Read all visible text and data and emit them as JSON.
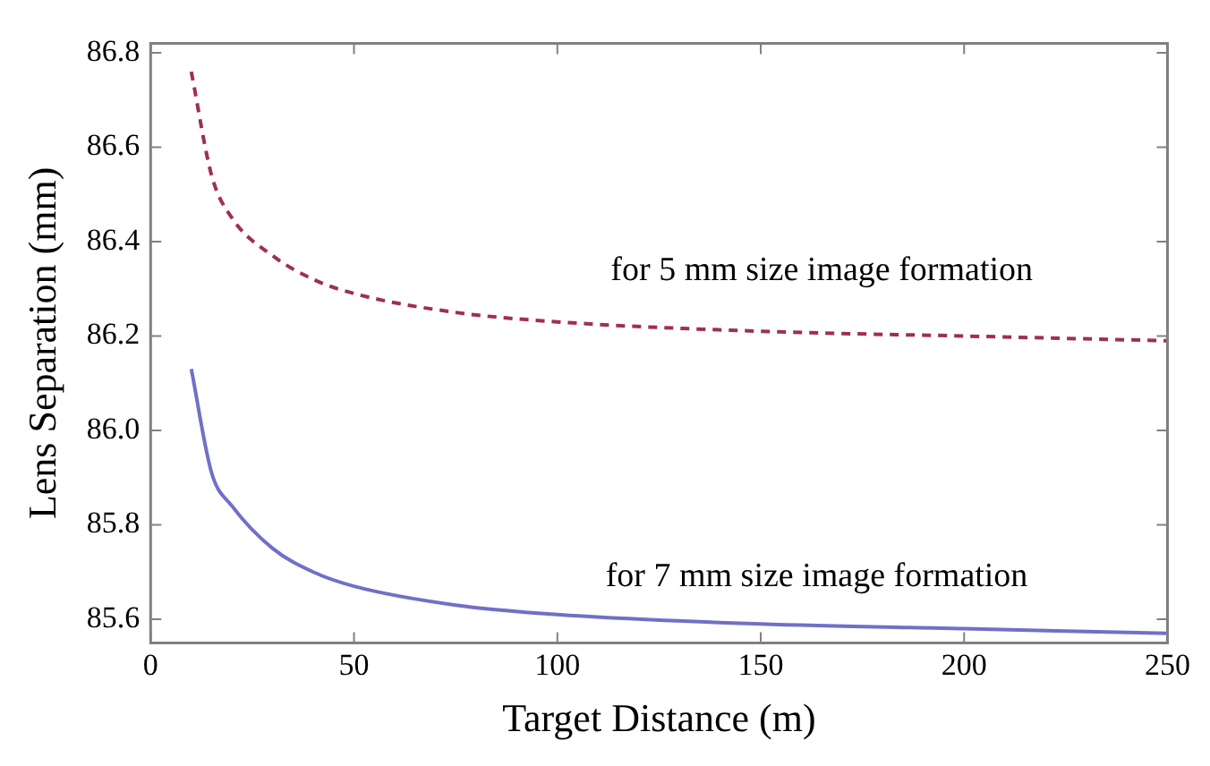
{
  "chart_data": {
    "type": "line",
    "xlabel": "Target Distance (m)",
    "ylabel": "Lens Separation (mm)",
    "xlim": [
      0,
      250
    ],
    "xticks": [
      0,
      50,
      100,
      150,
      200,
      250
    ],
    "ylim": [
      85.55,
      86.82
    ],
    "yticks": [
      {
        "value": 85.6,
        "label": "85.6"
      },
      {
        "value": 85.8,
        "label": "85.8"
      },
      {
        "value": 86.0,
        "label": "86.0"
      },
      {
        "value": 86.2,
        "label": "86.2"
      },
      {
        "value": 86.4,
        "label": "86.4"
      },
      {
        "value": 86.6,
        "label": "86.6"
      },
      {
        "value": 86.8,
        "label": "86.8"
      }
    ],
    "grid": false,
    "legend": false,
    "marker": "none",
    "series": [
      {
        "color": "#a0304a",
        "line_style": "dashed",
        "x": [
          10,
          15,
          20,
          30,
          40,
          50,
          75,
          100,
          150,
          200,
          250
        ],
        "values": [
          86.76,
          86.54,
          86.45,
          86.37,
          86.32,
          86.29,
          86.25,
          86.23,
          86.21,
          86.2,
          86.19
        ]
      },
      {
        "color": "#7070c8",
        "line_style": "solid",
        "x": [
          10,
          15,
          20,
          30,
          40,
          50,
          75,
          100,
          150,
          200,
          250
        ],
        "values": [
          86.13,
          85.91,
          85.84,
          85.75,
          85.7,
          85.67,
          85.63,
          85.61,
          85.59,
          85.58,
          85.57
        ]
      }
    ],
    "annotations": [
      "for 5 mm size image formation",
      "for 7 mm size image formation"
    ]
  }
}
